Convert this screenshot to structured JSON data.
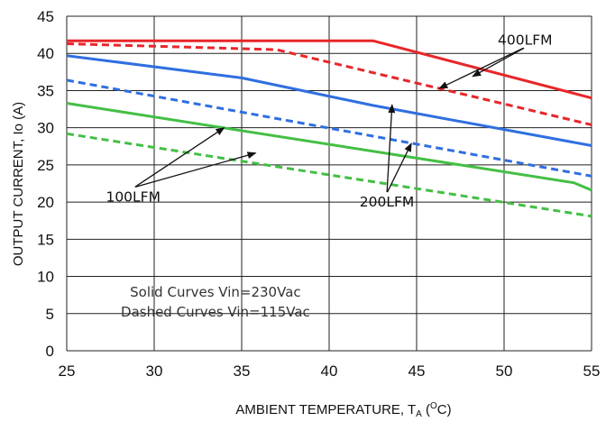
{
  "chart_data": {
    "type": "line",
    "xlabel": "AMBIENT TEMPERATURE, T",
    "xlabel_sub": "A",
    "xlabel_unit_open": " (",
    "xlabel_unit_sup": "O",
    "xlabel_unit_close": "C)",
    "ylabel": "OUTPUT CURRENT, Io  (A)",
    "xlim": [
      25,
      55
    ],
    "ylim": [
      0,
      45
    ],
    "xticks": [
      25,
      30,
      35,
      40,
      45,
      50,
      55
    ],
    "yticks": [
      0,
      5,
      10,
      15,
      20,
      25,
      30,
      35,
      40,
      45
    ],
    "grid": true,
    "series": [
      {
        "color": "#e8262a",
        "style": "solid",
        "points": [
          [
            25,
            41.7
          ],
          [
            42.5,
            41.7
          ],
          [
            55,
            34.0
          ]
        ]
      },
      {
        "color": "#e8262a",
        "style": "dashed",
        "points": [
          [
            25,
            41.3
          ],
          [
            37,
            40.5
          ],
          [
            55,
            30.4
          ]
        ]
      },
      {
        "color": "#2f6fe0",
        "style": "solid",
        "points": [
          [
            25,
            39.7
          ],
          [
            35,
            36.7
          ],
          [
            42.5,
            33.0
          ],
          [
            55,
            27.6
          ]
        ]
      },
      {
        "color": "#2f6fe0",
        "style": "dashed",
        "points": [
          [
            25,
            36.4
          ],
          [
            55,
            23.5
          ]
        ]
      },
      {
        "color": "#44bf44",
        "style": "solid",
        "points": [
          [
            25,
            33.3
          ],
          [
            54,
            22.6
          ],
          [
            55,
            21.6
          ]
        ]
      },
      {
        "color": "#44bf44",
        "style": "dashed",
        "points": [
          [
            25,
            29.2
          ],
          [
            44.5,
            22.0
          ],
          [
            55,
            18.1
          ]
        ]
      }
    ],
    "annotations": [
      {
        "text": "400LFM",
        "x": 51.2,
        "y": 41.2,
        "arrows": [
          [
            46.3,
            35.3
          ],
          [
            48.2,
            36.9
          ]
        ]
      },
      {
        "text": "200LFM",
        "x": 43.3,
        "y": 19.4,
        "arrows": [
          [
            43.6,
            33.1
          ],
          [
            44.7,
            27.9
          ]
        ]
      },
      {
        "text": "100LFM",
        "x": 28.8,
        "y": 20.1,
        "arrows": [
          [
            34.0,
            30.0
          ],
          [
            35.8,
            26.6
          ]
        ]
      }
    ],
    "notes": [
      "Solid Curves Vin=230Vac",
      "Dashed Curves Vin=115Vac"
    ]
  }
}
